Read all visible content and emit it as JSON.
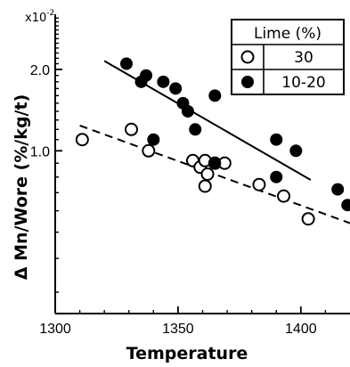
{
  "chart_data": {
    "type": "scatter",
    "xlabel": "Temperature",
    "ylabel": "Δ Mn/Wore (%/kg/t)",
    "y_multiplier": "x10",
    "y_multiplier_exp": "-2",
    "xlim": [
      1300,
      1420
    ],
    "ylim": [
      0.25,
      3.2
    ],
    "y_scale": "log",
    "x_ticks": [
      1300,
      1350,
      1400
    ],
    "x_tick_labels": [
      "1300",
      "1350",
      "1400"
    ],
    "y_ticks": [
      1.0,
      2.0
    ],
    "y_tick_labels": [
      "1.0",
      "2.0"
    ],
    "legend": {
      "title": "Lime (%)",
      "position": "top-right",
      "entries": [
        "30",
        "10-20"
      ]
    },
    "series": [
      {
        "name": "30",
        "marker": "open-circle",
        "line_style": "dashed",
        "points": [
          [
            1311,
            1.1
          ],
          [
            1331,
            1.2
          ],
          [
            1338,
            1.0
          ],
          [
            1356,
            0.92
          ],
          [
            1359,
            0.87
          ],
          [
            1361,
            0.92
          ],
          [
            1362,
            0.82
          ],
          [
            1361,
            0.74
          ],
          [
            1365,
            0.9
          ],
          [
            1369,
            0.9
          ],
          [
            1383,
            0.75
          ],
          [
            1393,
            0.68
          ],
          [
            1403,
            0.56
          ]
        ],
        "fit_line": [
          [
            1310,
            1.24
          ],
          [
            1420,
            0.54
          ]
        ]
      },
      {
        "name": "10-20",
        "marker": "filled-circle",
        "line_style": "solid",
        "points": [
          [
            1329,
            2.1
          ],
          [
            1335,
            1.8
          ],
          [
            1337,
            1.9
          ],
          [
            1340,
            1.1
          ],
          [
            1344,
            1.8
          ],
          [
            1349,
            1.7
          ],
          [
            1352,
            1.5
          ],
          [
            1354,
            1.4
          ],
          [
            1357,
            1.2
          ],
          [
            1365,
            1.6
          ],
          [
            1365,
            0.9
          ],
          [
            1390,
            1.1
          ],
          [
            1390,
            0.8
          ],
          [
            1398,
            1.0
          ],
          [
            1415,
            0.72
          ],
          [
            1419,
            0.63
          ]
        ],
        "fit_line": [
          [
            1320,
            2.15
          ],
          [
            1404,
            0.78
          ]
        ]
      }
    ]
  }
}
